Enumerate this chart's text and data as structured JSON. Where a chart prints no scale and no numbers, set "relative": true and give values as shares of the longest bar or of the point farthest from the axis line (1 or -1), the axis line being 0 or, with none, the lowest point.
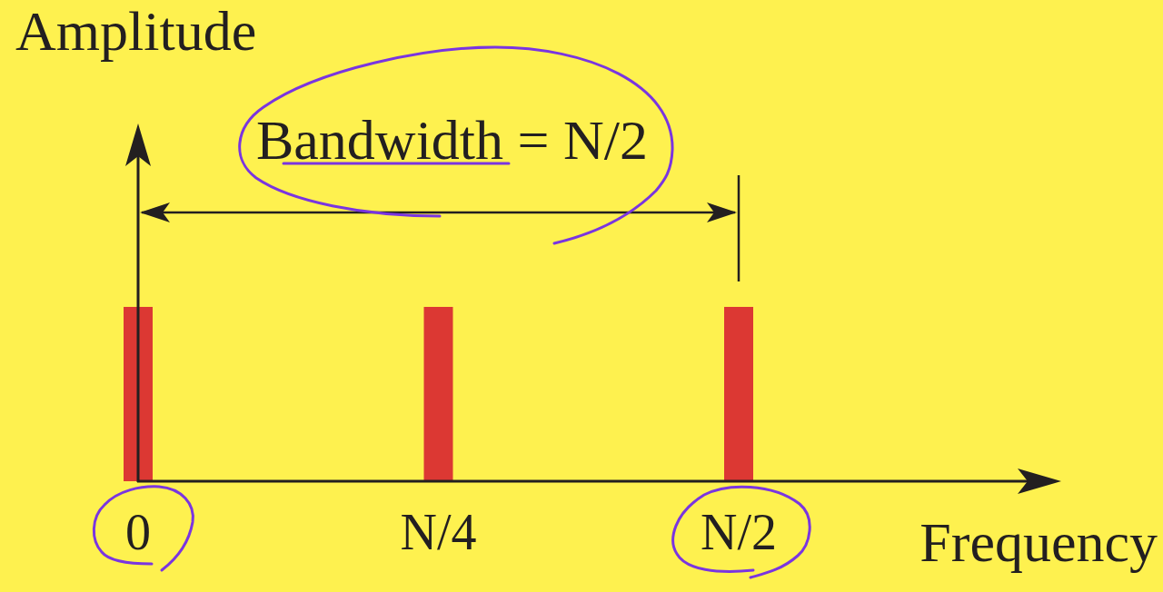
{
  "chart_data": {
    "type": "bar",
    "relative": true,
    "categories": [
      "0",
      "N/4",
      "N/2"
    ],
    "values": [
      1,
      1,
      1
    ],
    "color": "#dc3833",
    "xlabel": "Frequency",
    "ylabel": "Amplitude",
    "annotations": [
      "Bandwidth = N/2"
    ]
  }
}
